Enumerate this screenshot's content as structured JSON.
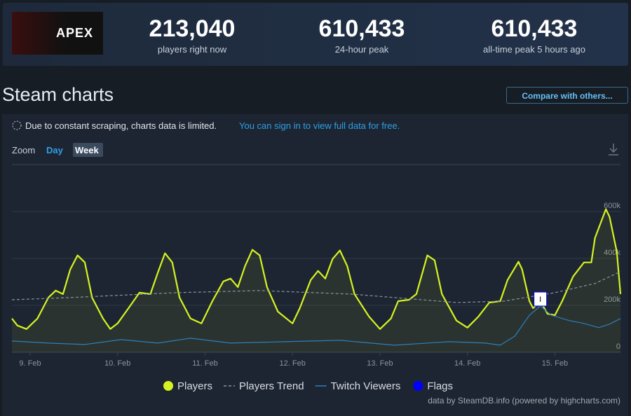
{
  "header": {
    "logo_text": "APEX",
    "stats": [
      {
        "value": "213,040",
        "label": "players right now"
      },
      {
        "value": "610,433",
        "label": "24-hour peak"
      },
      {
        "value": "610,433",
        "label": "all-time peak 5 hours ago"
      }
    ]
  },
  "page_title": "Steam charts",
  "compare_button": "Compare with others...",
  "notice": {
    "text": "Due to constant scraping, charts data is limited.",
    "link": "You can sign in to view full data for free."
  },
  "zoom": {
    "label": "Zoom",
    "options": [
      "Day",
      "Week"
    ]
  },
  "chart_data": {
    "type": "line",
    "xlim": [
      -5,
      162
    ],
    "ylim": [
      0,
      800000
    ],
    "xticks": [
      {
        "value": 0,
        "label": "9. Feb"
      },
      {
        "value": 24,
        "label": "10. Feb"
      },
      {
        "value": 48,
        "label": "11. Feb"
      },
      {
        "value": 72,
        "label": "12. Feb"
      },
      {
        "value": 96,
        "label": "13. Feb"
      },
      {
        "value": 120,
        "label": "14. Feb"
      },
      {
        "value": 144,
        "label": "15. Feb"
      }
    ],
    "yticks": [
      0,
      {
        "value": 200000,
        "label": "200k"
      },
      {
        "value": 400000,
        "label": "400k"
      },
      {
        "value": 600000,
        "label": "600k"
      }
    ],
    "grid": true,
    "series": [
      {
        "name": "Players",
        "color": "#d5f321",
        "area": true,
        "x": [
          -5,
          -3.5,
          -1,
          2,
          5,
          7,
          9,
          11,
          13,
          15,
          17,
          20,
          22,
          24,
          27,
          30,
          33,
          35,
          37,
          39,
          41,
          44,
          47,
          50,
          53,
          55,
          57,
          59,
          61,
          63,
          65,
          68,
          72,
          74,
          77,
          79,
          81,
          83,
          85,
          87,
          89,
          93,
          96,
          99,
          101,
          104,
          106,
          109,
          111,
          113,
          117,
          120,
          123,
          126,
          129,
          131,
          134,
          135,
          137,
          138,
          140,
          142,
          144,
          146,
          149,
          152,
          154,
          155,
          158,
          159,
          161,
          162
        ],
        "values": [
          144000,
          114000,
          99000,
          144000,
          233000,
          263000,
          248000,
          353000,
          413000,
          383000,
          233000,
          144000,
          99000,
          123000,
          188000,
          254000,
          248000,
          338000,
          422000,
          383000,
          233000,
          144000,
          123000,
          218000,
          302000,
          314000,
          278000,
          368000,
          437000,
          413000,
          278000,
          173000,
          123000,
          188000,
          308000,
          347000,
          314000,
          398000,
          434000,
          368000,
          248000,
          152000,
          99000,
          144000,
          218000,
          224000,
          248000,
          413000,
          392000,
          248000,
          135000,
          105000,
          152000,
          212000,
          218000,
          308000,
          386000,
          353000,
          218000,
          188000,
          218000,
          164000,
          158000,
          218000,
          323000,
          383000,
          383000,
          487000,
          610000,
          577000,
          428000,
          248000
        ]
      },
      {
        "name": "Players Trend",
        "color": "#8a93a0",
        "dashed": true,
        "x": [
          -5,
          11,
          40,
          63,
          88,
          117,
          130,
          144,
          155,
          162
        ],
        "values": [
          224000,
          233000,
          254000,
          263000,
          248000,
          212000,
          218000,
          254000,
          293000,
          344000
        ]
      },
      {
        "name": "Twitch Viewers",
        "color": "#2e7fb8",
        "x": [
          -5,
          5,
          15,
          25,
          35,
          44,
          55,
          70,
          85,
          100,
          115,
          125,
          129,
          133,
          137,
          140,
          143,
          148,
          152,
          156,
          159,
          162
        ],
        "values": [
          48000,
          39000,
          33000,
          54000,
          39000,
          60000,
          39000,
          45000,
          51000,
          30000,
          45000,
          39000,
          30000,
          69000,
          158000,
          197000,
          158000,
          135000,
          123000,
          105000,
          120000,
          144000
        ]
      },
      {
        "name": "Flags",
        "color": "#0000ff",
        "flag": true,
        "x": [
          140
        ],
        "labels": [
          "I"
        ]
      }
    ]
  },
  "credit": "data by SteamDB.info (powered by highcharts.com)"
}
